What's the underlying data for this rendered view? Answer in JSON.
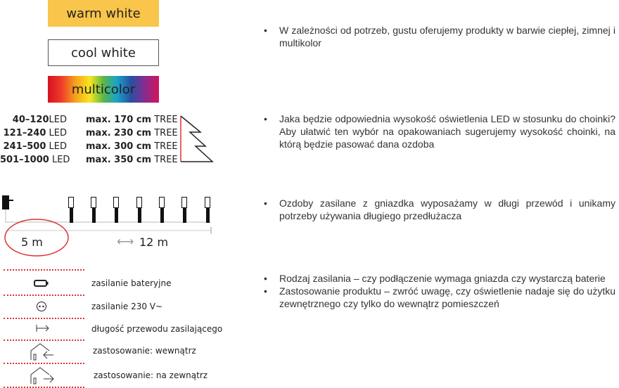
{
  "colors": {
    "warm_white": "#f9c54a",
    "accent_red": "#d33333"
  },
  "swatches": [
    {
      "label": "warm white"
    },
    {
      "label": "cool white"
    },
    {
      "label": "multicolor"
    }
  ],
  "led_table": [
    {
      "led": "40–120",
      "led_unit": "LED",
      "max": "max. 170 cm",
      "tree": "TREE"
    },
    {
      "led": "121–240",
      "led_unit": "LED",
      "max": "max. 230 cm",
      "tree": "TREE"
    },
    {
      "led": "241–500",
      "led_unit": "LED",
      "max": "max. 300 cm",
      "tree": "TREE"
    },
    {
      "led": "501–1000",
      "led_unit": "LED",
      "max": "max. 350 cm",
      "tree": "TREE"
    }
  ],
  "cable": {
    "lead_length": "5 m",
    "string_length": "12 m",
    "arrow_icon": "double-arrow-icon"
  },
  "legend": [
    {
      "icon": "battery-icon",
      "label": "zasilanie bateryjne"
    },
    {
      "icon": "socket-icon",
      "label": "zasilanie 230 V~"
    },
    {
      "icon": "cable-length-arrow-icon",
      "label": "długość przewodu zasilającego"
    },
    {
      "icon": "indoor-house-icon",
      "label": "zastosowanie: wewnątrz"
    },
    {
      "icon": "outdoor-house-icon",
      "label": "zastosowanie: na zewnątrz"
    }
  ],
  "bullets": {
    "colors": "W zależności od potrzeb, gustu oferujemy produkty w barwie ciepłej, zimnej i multikolor",
    "height": "Jaka będzie odpowiednia wysokość oświetlenia LED w stosunku do choinki? Aby ułatwić ten wybór na opakowaniach sugerujemy wysokość choinki, na którą będzie pasować dana ozdoba",
    "cable": "Ozdoby zasilane z gniazdka wyposażamy w długi przewód i unikamy potrzeby używania długiego przedłużacza",
    "power": "Rodzaj zasilania – czy podłączenie wymaga gniazda czy wystarczą baterie",
    "usage": "Zastosowanie produktu – zwróć uwagę, czy oświetlenie nadaje się do użytku zewnętrznego czy tylko do wewnątrz pomieszczeń"
  }
}
